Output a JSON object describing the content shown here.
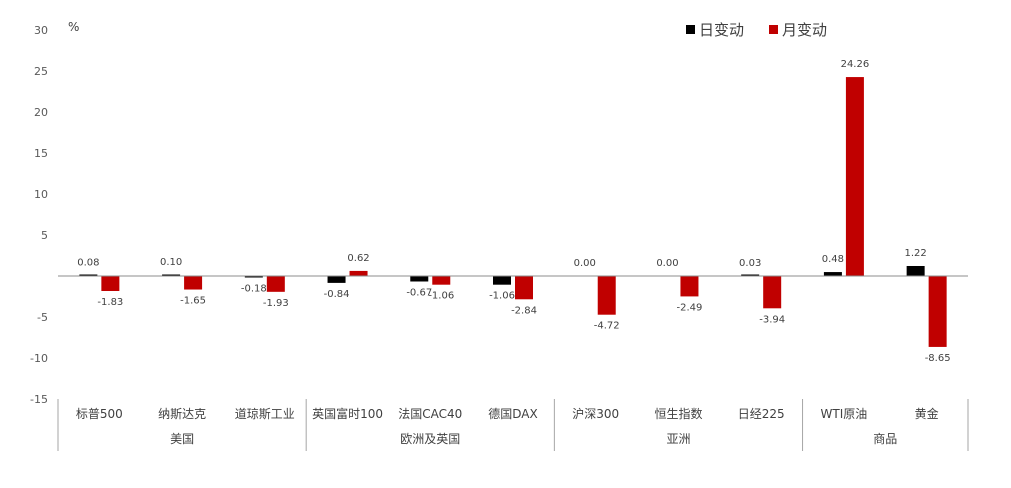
{
  "chart_data": {
    "type": "bar",
    "unit_label": "%",
    "ylim": [
      -15,
      30
    ],
    "yticks": [
      30,
      25,
      20,
      15,
      10,
      5,
      -5,
      -10,
      -15
    ],
    "grid": false,
    "legend_position": "top-right",
    "categories": [
      "标普500",
      "纳斯达克",
      "道琼斯工业",
      "英国富时100",
      "法国CAC40",
      "德国DAX",
      "沪深300",
      "恒生指数",
      "日经225",
      "WTI原油",
      "黄金"
    ],
    "groups": [
      {
        "label": "美国",
        "count": 3
      },
      {
        "label": "欧洲及英国",
        "count": 3
      },
      {
        "label": "亚洲",
        "count": 3
      },
      {
        "label": "商品",
        "count": 2
      }
    ],
    "series": [
      {
        "name": "日变动",
        "color": "#000000",
        "values": [
          0.08,
          0.1,
          -0.18,
          -0.84,
          -0.67,
          -1.06,
          0.0,
          0.0,
          0.03,
          0.48,
          1.22
        ],
        "labels": [
          "0.08",
          "0.10",
          "-0.18",
          "-0.84",
          "-0.67",
          "-1.06",
          "0.00",
          "0.00",
          "0.03",
          "0.48",
          "1.22"
        ]
      },
      {
        "name": "月变动",
        "color": "#C00000",
        "values": [
          -1.83,
          -1.65,
          -1.93,
          0.62,
          -1.06,
          -2.84,
          -4.72,
          -2.49,
          -3.94,
          24.26,
          -8.65
        ],
        "labels": [
          "-1.83",
          "-1.65",
          "-1.93",
          "0.62",
          "-1.06",
          "-2.84",
          "-4.72",
          "-2.49",
          "-3.94",
          "24.26",
          "-8.65"
        ]
      }
    ]
  }
}
